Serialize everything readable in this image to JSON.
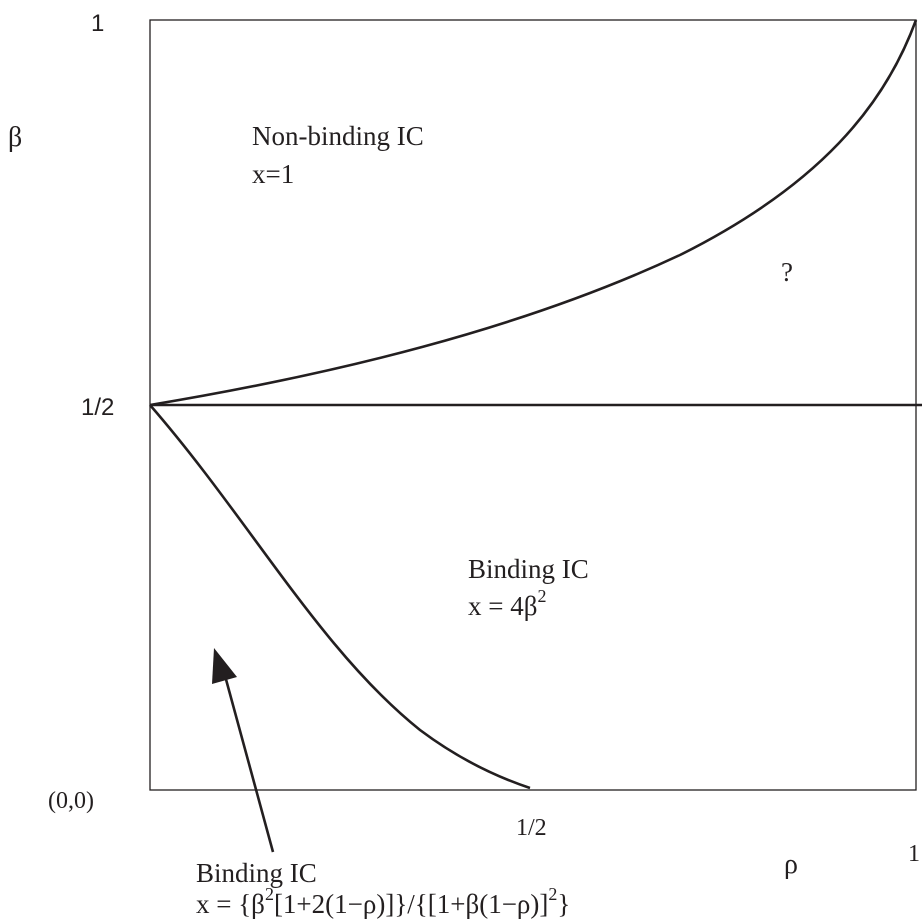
{
  "axes": {
    "y_title": "β",
    "x_title": "ρ",
    "y_ticks": {
      "top": "1",
      "mid": "1/2"
    },
    "x_ticks": {
      "mid": "1/2",
      "right": "1"
    },
    "origin_label": "(0,0)"
  },
  "regions": {
    "nonbinding": {
      "title": "Non-binding IC",
      "formula": "x=1"
    },
    "unknown": {
      "mark": "?"
    },
    "binding_upper": {
      "title": "Binding IC",
      "formula_prefix": "x = 4β",
      "formula_exponent": "2"
    },
    "binding_lower": {
      "title": "Binding IC",
      "formula_part1": "x = {β",
      "formula_exponent1": "2",
      "formula_part2": "[1+2(1−ρ)]}/{[1+β(1−ρ)]",
      "formula_exponent2": "2",
      "formula_part3": "}"
    }
  },
  "colors": {
    "ink": "#231f20",
    "background": "#ffffff"
  }
}
